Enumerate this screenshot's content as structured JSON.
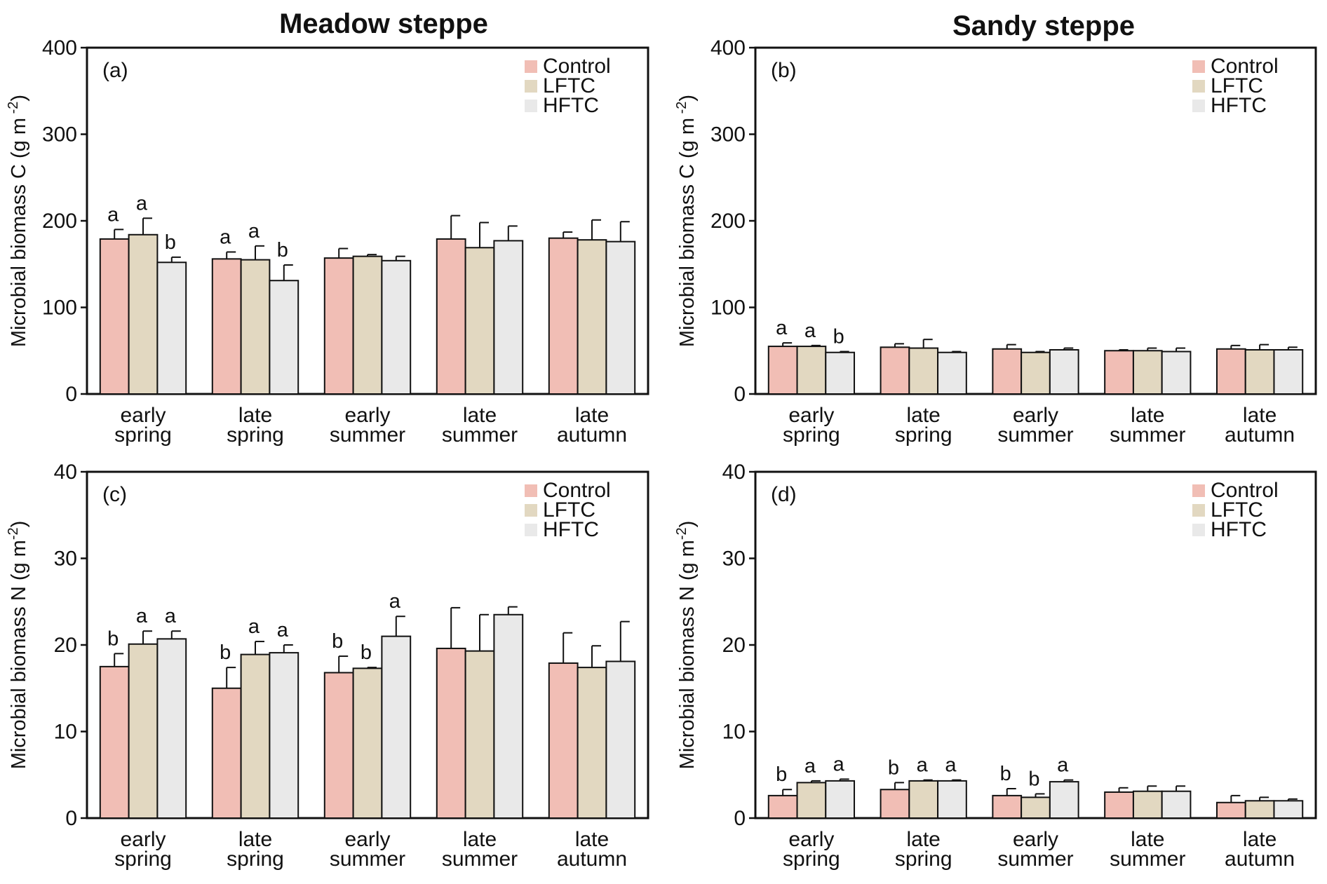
{
  "titles": {
    "left": "Meadow steppe",
    "right": "Sandy steppe"
  },
  "colors": {
    "Control": "#f1beb5",
    "LFTC": "#e2d8c1",
    "HFTC": "#e9e9e9",
    "axis": "#111111"
  },
  "chart_data": [
    {
      "type": "bar",
      "panel": "(a)",
      "ylabel": "Microbial biomass C (g m -2)",
      "ylim": [
        0,
        400
      ],
      "yticks": [
        0,
        100,
        200,
        300,
        400
      ],
      "categories": [
        "early spring",
        "late spring",
        "early summer",
        "late summer",
        "late autumn"
      ],
      "legend_position": "top-right",
      "series": [
        {
          "name": "Control",
          "values": [
            179,
            156,
            157,
            179,
            180
          ],
          "errors": [
            11,
            8,
            11,
            27,
            7
          ],
          "letters": [
            "a",
            "a",
            "",
            "",
            ""
          ]
        },
        {
          "name": "LFTC",
          "values": [
            184,
            155,
            159,
            169,
            178
          ],
          "errors": [
            19,
            16,
            2,
            29,
            23
          ],
          "letters": [
            "a",
            "a",
            "",
            "",
            ""
          ]
        },
        {
          "name": "HFTC",
          "values": [
            152,
            131,
            154,
            177,
            176
          ],
          "errors": [
            6,
            18,
            5,
            17,
            23
          ],
          "letters": [
            "b",
            "b",
            "",
            "",
            ""
          ]
        }
      ]
    },
    {
      "type": "bar",
      "panel": "(b)",
      "ylabel": "Microbial biomass C (g m -2)",
      "ylim": [
        0,
        400
      ],
      "yticks": [
        0,
        100,
        200,
        300,
        400
      ],
      "categories": [
        "early spring",
        "late spring",
        "early summer",
        "late summer",
        "late autumn"
      ],
      "legend_position": "top-right",
      "series": [
        {
          "name": "Control",
          "values": [
            55,
            54,
            52,
            50,
            52
          ],
          "errors": [
            4,
            4,
            5,
            1,
            4
          ],
          "letters": [
            "a",
            "",
            "",
            "",
            ""
          ]
        },
        {
          "name": "LFTC",
          "values": [
            55,
            53,
            48,
            50,
            51
          ],
          "errors": [
            1,
            10,
            1,
            3,
            6
          ],
          "letters": [
            "a",
            "",
            "",
            "",
            ""
          ]
        },
        {
          "name": "HFTC",
          "values": [
            48,
            48,
            51,
            49,
            51
          ],
          "errors": [
            1,
            1,
            2,
            4,
            3
          ],
          "letters": [
            "b",
            "",
            "",
            "",
            ""
          ]
        }
      ]
    },
    {
      "type": "bar",
      "panel": "(c)",
      "ylabel": "Microbial biomass N (g m-2)",
      "ylim": [
        0,
        40
      ],
      "yticks": [
        0,
        10,
        20,
        30,
        40
      ],
      "categories": [
        "early spring",
        "late spring",
        "early summer",
        "late summer",
        "late autumn"
      ],
      "legend_position": "top-right",
      "series": [
        {
          "name": "Control",
          "values": [
            17.5,
            15.0,
            16.8,
            19.6,
            17.9
          ],
          "errors": [
            1.5,
            2.4,
            1.9,
            4.7,
            3.5
          ],
          "letters": [
            "b",
            "b",
            "b",
            "",
            ""
          ]
        },
        {
          "name": "LFTC",
          "values": [
            20.1,
            18.9,
            17.3,
            19.3,
            17.4
          ],
          "errors": [
            1.5,
            1.5,
            0.1,
            4.2,
            2.5
          ],
          "letters": [
            "a",
            "a",
            "b",
            "",
            ""
          ]
        },
        {
          "name": "HFTC",
          "values": [
            20.7,
            19.1,
            21.0,
            23.5,
            18.1
          ],
          "errors": [
            0.9,
            0.9,
            2.3,
            0.9,
            4.6
          ],
          "letters": [
            "a",
            "a",
            "a",
            "",
            ""
          ]
        }
      ]
    },
    {
      "type": "bar",
      "panel": "(d)",
      "ylabel": "Microbial biomass N (g m-2)",
      "ylim": [
        0,
        40
      ],
      "yticks": [
        0,
        10,
        20,
        30,
        40
      ],
      "categories": [
        "early spring",
        "late spring",
        "early summer",
        "late summer",
        "late autumn"
      ],
      "legend_position": "top-right",
      "series": [
        {
          "name": "Control",
          "values": [
            2.6,
            3.3,
            2.6,
            3.0,
            1.8
          ],
          "errors": [
            0.7,
            0.8,
            0.8,
            0.5,
            0.8
          ],
          "letters": [
            "b",
            "b",
            "b",
            "",
            ""
          ]
        },
        {
          "name": "LFTC",
          "values": [
            4.1,
            4.3,
            2.4,
            3.1,
            2.0
          ],
          "errors": [
            0.2,
            0.1,
            0.4,
            0.6,
            0.4
          ],
          "letters": [
            "a",
            "a",
            "b",
            "",
            ""
          ]
        },
        {
          "name": "HFTC",
          "values": [
            4.3,
            4.3,
            4.2,
            3.1,
            2.0
          ],
          "errors": [
            0.2,
            0.1,
            0.2,
            0.6,
            0.2
          ],
          "letters": [
            "a",
            "a",
            "a",
            "",
            ""
          ]
        }
      ]
    }
  ]
}
